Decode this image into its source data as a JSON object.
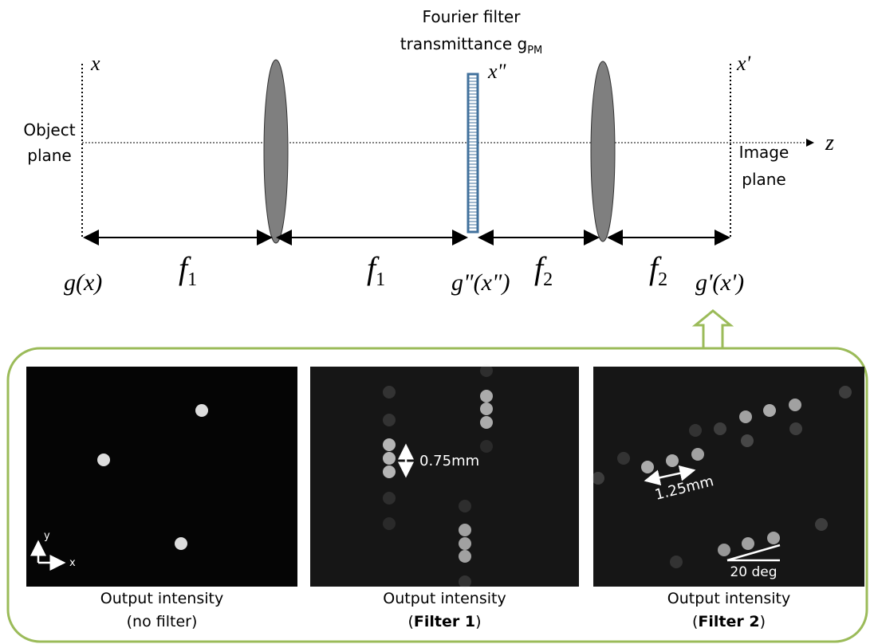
{
  "filter_label": {
    "line1": "Fourier filter",
    "line2": "transmittance g",
    "subscript": "PM"
  },
  "planes": {
    "object": {
      "axis": "x",
      "label_line1": "Object",
      "label_line2": "plane",
      "field": "g(x)"
    },
    "fourier": {
      "axis": "x\"",
      "field": "g\"(x\")"
    },
    "image": {
      "axis": "x'",
      "label_line1": "Image",
      "label_line2": "plane",
      "field": "g'(x')"
    }
  },
  "optical_axis": "z",
  "distances": [
    {
      "symbol": "f",
      "subscript": "1"
    },
    {
      "symbol": "f",
      "subscript": "1"
    },
    {
      "symbol": "f",
      "subscript": "2"
    },
    {
      "symbol": "f",
      "subscript": "2"
    }
  ],
  "panels": [
    {
      "caption_line1": "Output intensity",
      "caption_line2": [
        {
          "text": "(no filter)"
        }
      ],
      "annotations": [
        "y",
        "x"
      ]
    },
    {
      "caption_line1": "Output intensity",
      "caption_line2": [
        {
          "text": "("
        },
        {
          "text": "Filter 1",
          "bold": true
        },
        {
          "text": ")"
        }
      ],
      "annotations": [
        "0.75mm"
      ]
    },
    {
      "caption_line1": "Output intensity",
      "caption_line2": [
        {
          "text": "("
        },
        {
          "text": "Filter 2",
          "bold": true
        },
        {
          "text": ")"
        }
      ],
      "annotations": [
        "1.25mm",
        "20 deg"
      ]
    }
  ]
}
